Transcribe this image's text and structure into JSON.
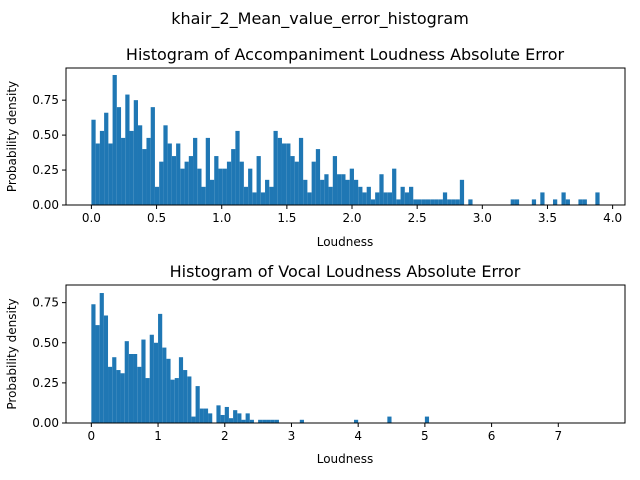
{
  "figure_title": "khair_2_Mean_value_error_histogram",
  "bar_color": "#1f77b4",
  "chart_data": [
    {
      "type": "bar",
      "title": "Histogram of Accompaniment Loudness Absolute Error",
      "xlabel": "Loudness",
      "ylabel": "Probability density",
      "xlim": [
        -0.195,
        4.095
      ],
      "ylim": [
        0,
        0.98
      ],
      "xticks": [
        0.0,
        0.5,
        1.0,
        1.5,
        2.0,
        2.5,
        3.0,
        3.5,
        4.0
      ],
      "xtick_labels": [
        "0.0",
        "0.5",
        "1.0",
        "1.5",
        "2.0",
        "2.5",
        "3.0",
        "3.5",
        "4.0"
      ],
      "yticks": [
        0.0,
        0.25,
        0.5,
        0.75
      ],
      "ytick_labels": [
        "0.00",
        "0.25",
        "0.50",
        "0.75"
      ],
      "bin_start": 0.0,
      "bin_width": 0.0325,
      "values": [
        0.61,
        0.44,
        0.53,
        0.66,
        0.44,
        0.93,
        0.7,
        0.48,
        0.79,
        0.53,
        0.75,
        0.57,
        0.4,
        0.48,
        0.7,
        0.13,
        0.31,
        0.57,
        0.44,
        0.35,
        0.44,
        0.26,
        0.31,
        0.35,
        0.48,
        0.26,
        0.13,
        0.48,
        0.18,
        0.35,
        0.26,
        0.26,
        0.31,
        0.4,
        0.53,
        0.31,
        0.13,
        0.26,
        0.09,
        0.35,
        0.09,
        0.18,
        0.13,
        0.53,
        0.48,
        0.44,
        0.44,
        0.35,
        0.31,
        0.48,
        0.18,
        0.09,
        0.31,
        0.4,
        0.18,
        0.22,
        0.13,
        0.35,
        0.22,
        0.22,
        0.18,
        0.26,
        0.18,
        0.13,
        0.09,
        0.13,
        0.04,
        0.09,
        0.22,
        0.09,
        0.09,
        0.26,
        0.04,
        0.13,
        0.09,
        0.13,
        0.04,
        0.04,
        0.04,
        0.04,
        0.04,
        0.04,
        0.04,
        0.09,
        0.04,
        0.04,
        0.04,
        0.18,
        0.0,
        0.04,
        0.0,
        0.0,
        0.0,
        0.0,
        0.0,
        0.0,
        0.0,
        0.0,
        0.0,
        0.04,
        0.04,
        0.0,
        0.0,
        0.0,
        0.04,
        0.0,
        0.09,
        0.0,
        0.0,
        0.04,
        0.0,
        0.09,
        0.04,
        0.0,
        0.0,
        0.04,
        0.04,
        0.0,
        0.0,
        0.09
      ]
    },
    {
      "type": "bar",
      "title": "Histogram of Vocal Loudness Absolute Error",
      "xlabel": "Loudness",
      "ylabel": "Probability density",
      "xlim": [
        -0.38,
        8.0
      ],
      "ylim": [
        0,
        0.86
      ],
      "xticks": [
        0,
        1,
        2,
        3,
        4,
        5,
        6,
        7
      ],
      "xtick_labels": [
        "0",
        "1",
        "2",
        "3",
        "4",
        "5",
        "6",
        "7"
      ],
      "yticks": [
        0.0,
        0.25,
        0.5,
        0.75
      ],
      "ytick_labels": [
        "0.00",
        "0.25",
        "0.50",
        "0.75"
      ],
      "bin_start": 0.0,
      "bin_width": 0.0625,
      "values": [
        0.74,
        0.61,
        0.81,
        0.67,
        0.35,
        0.41,
        0.33,
        0.31,
        0.51,
        0.43,
        0.43,
        0.35,
        0.52,
        0.28,
        0.55,
        0.5,
        0.68,
        0.47,
        0.4,
        0.27,
        0.28,
        0.41,
        0.33,
        0.29,
        0.04,
        0.23,
        0.09,
        0.09,
        0.06,
        0.0,
        0.11,
        0.05,
        0.1,
        0.03,
        0.08,
        0.06,
        0.02,
        0.06,
        0.02,
        0.0,
        0.02,
        0.02,
        0.02,
        0.02,
        0.02,
        0.0,
        0.0,
        0.0,
        0.0,
        0.0,
        0.02,
        0.0,
        0.0,
        0.0,
        0.0,
        0.0,
        0.0,
        0.0,
        0.0,
        0.0,
        0.0,
        0.0,
        0.0,
        0.02,
        0.0,
        0.0,
        0.0,
        0.0,
        0.0,
        0.0,
        0.0,
        0.04,
        0.0,
        0.0,
        0.0,
        0.0,
        0.0,
        0.0,
        0.0,
        0.0,
        0.04,
        0.0,
        0.0,
        0.0,
        0.0,
        0.0,
        0.0,
        0.0,
        0.0,
        0.0,
        0.0,
        0.0,
        0.0,
        0.0,
        0.0,
        0.0,
        0.0,
        0.0,
        0.0,
        0.0,
        0.0,
        0.0,
        0.0,
        0.0,
        0.0,
        0.0,
        0.0,
        0.0,
        0.0,
        0.0,
        0.0,
        0.0,
        0.0,
        0.0,
        0.0,
        0.0,
        0.0,
        0.0,
        0.0,
        0.0,
        0.0,
        0.0
      ]
    }
  ]
}
